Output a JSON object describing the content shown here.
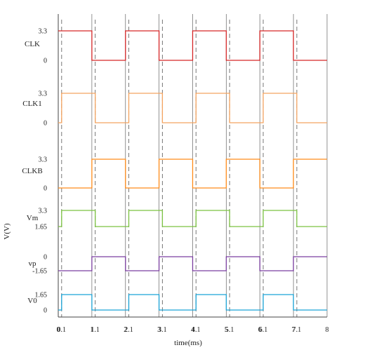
{
  "chart_data": {
    "type": "line",
    "title": "",
    "xlabel": "time(ms)",
    "ylabel": "V(V)",
    "xlim": [
      0,
      8
    ],
    "x_ticks": [
      "0",
      "0.1",
      "1",
      "1.1",
      "2",
      "2.1",
      "3",
      "3.1",
      "4",
      "4.1",
      "5",
      "5.1",
      "6",
      "6.1",
      "7",
      "7.1",
      "8"
    ],
    "x_tick_values": [
      0,
      0.1,
      1,
      1.1,
      2,
      2.1,
      3,
      3.1,
      4,
      4.1,
      5,
      5.1,
      6,
      6.1,
      7,
      7.1,
      8
    ],
    "gridlines_solid_at": [
      0,
      1,
      2,
      3,
      4,
      5,
      6,
      7,
      8
    ],
    "gridlines_dashed_at": [
      0.1,
      1.1,
      2.1,
      3.1,
      4.1,
      5.1,
      6.1,
      7.1
    ],
    "grid": true,
    "legend": "none",
    "series": [
      {
        "name": "CLK",
        "color": "#d62728",
        "y_ticks": [
          "3.3",
          "0"
        ],
        "y_tick_values": [
          3.3,
          0
        ],
        "ylim": [
          0,
          3.3
        ],
        "x": [
          0,
          1,
          1,
          2,
          2,
          3,
          3,
          4,
          4,
          5,
          5,
          6,
          6,
          7,
          7,
          8
        ],
        "y": [
          3.3,
          3.3,
          0,
          0,
          3.3,
          3.3,
          0,
          0,
          3.3,
          3.3,
          0,
          0,
          3.3,
          3.3,
          0,
          0
        ]
      },
      {
        "name": "CLK1",
        "color": "#f4a460",
        "y_ticks": [
          "3.3",
          "0"
        ],
        "y_tick_values": [
          3.3,
          0
        ],
        "ylim": [
          0,
          3.3
        ],
        "x": [
          0,
          0.1,
          0.1,
          1.1,
          1.1,
          2.1,
          2.1,
          3.1,
          3.1,
          4.1,
          4.1,
          5.1,
          5.1,
          6.1,
          6.1,
          7.1,
          7.1,
          8
        ],
        "y": [
          0,
          0,
          3.3,
          3.3,
          0,
          0,
          3.3,
          3.3,
          0,
          0,
          3.3,
          3.3,
          0,
          0,
          3.3,
          3.3,
          0,
          0
        ]
      },
      {
        "name": "CLKB",
        "color": "#ff8c1a",
        "y_ticks": [
          "3.3",
          "0"
        ],
        "y_tick_values": [
          3.3,
          0
        ],
        "ylim": [
          0,
          3.3
        ],
        "x": [
          0,
          1,
          1,
          2,
          2,
          3,
          3,
          4,
          4,
          5,
          5,
          6,
          6,
          7,
          7,
          8
        ],
        "y": [
          0,
          0,
          3.3,
          3.3,
          0,
          0,
          3.3,
          3.3,
          0,
          0,
          3.3,
          3.3,
          0,
          0,
          3.3,
          3.3
        ]
      },
      {
        "name": "Vm",
        "color": "#7cc242",
        "y_ticks": [
          "3.3",
          "1.65"
        ],
        "y_tick_values": [
          3.3,
          1.65
        ],
        "ylim": [
          1.65,
          3.3
        ],
        "x": [
          0,
          0.1,
          0.1,
          1.1,
          1.1,
          2.1,
          2.1,
          3.1,
          3.1,
          4.1,
          4.1,
          5.1,
          5.1,
          6.1,
          6.1,
          7.1,
          7.1,
          8
        ],
        "y": [
          1.65,
          1.65,
          3.3,
          3.3,
          1.65,
          1.65,
          3.3,
          3.3,
          1.65,
          1.65,
          3.3,
          3.3,
          1.65,
          1.65,
          3.3,
          3.3,
          1.65,
          1.65
        ]
      },
      {
        "name": "vp",
        "color": "#7b3fa0",
        "y_ticks": [
          "0",
          "-1.65"
        ],
        "y_tick_values": [
          0,
          -1.65
        ],
        "ylim": [
          -1.65,
          0
        ],
        "x": [
          0,
          1,
          1,
          2,
          2,
          3,
          3,
          4,
          4,
          5,
          5,
          6,
          6,
          7,
          7,
          8
        ],
        "y": [
          -1.65,
          -1.65,
          0,
          0,
          -1.65,
          -1.65,
          0,
          0,
          -1.65,
          -1.65,
          0,
          0,
          -1.65,
          -1.65,
          0,
          0
        ]
      },
      {
        "name": "V0",
        "color": "#1aa3d6",
        "y_ticks": [
          "1.65",
          "0"
        ],
        "y_tick_values": [
          1.65,
          0
        ],
        "ylim": [
          0,
          1.65
        ],
        "x": [
          0,
          0.1,
          0.1,
          1,
          1,
          2.1,
          2.1,
          3,
          3,
          4.1,
          4.1,
          5,
          5,
          6.1,
          6.1,
          7,
          7,
          8
        ],
        "y": [
          0,
          0,
          1.65,
          1.65,
          0,
          0,
          1.65,
          1.65,
          0,
          0,
          1.65,
          1.65,
          0,
          0,
          1.65,
          1.65,
          0,
          0
        ]
      }
    ]
  }
}
